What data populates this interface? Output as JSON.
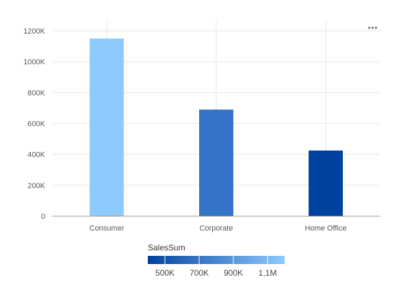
{
  "chart_data": {
    "type": "bar",
    "categories": [
      "Consumer",
      "Corporate",
      "Home Office"
    ],
    "series": [
      {
        "values": [
          1150000,
          690000,
          425000
        ]
      }
    ],
    "bar_colors": [
      "#8dcbff",
      "#3374c8",
      "#0042a0"
    ],
    "y_ticks": [
      {
        "value": 0,
        "label": "0"
      },
      {
        "value": 200000,
        "label": "200K"
      },
      {
        "value": 400000,
        "label": "400K"
      },
      {
        "value": 600000,
        "label": "600K"
      },
      {
        "value": 800000,
        "label": "800K"
      },
      {
        "value": 1000000,
        "label": "1000K"
      },
      {
        "value": 1200000,
        "label": "1200K"
      }
    ],
    "ylim": [
      0,
      1200000
    ],
    "grid": true,
    "legend": {
      "title": "SalesSum",
      "type": "color-scale",
      "placement": "bottom",
      "range": [
        400000,
        1200000
      ],
      "color_min": "#0042a0",
      "color_max": "#8dcbff",
      "ticks": [
        {
          "value": 500000,
          "label": "500K"
        },
        {
          "value": 700000,
          "label": "700K"
        },
        {
          "value": 900000,
          "label": "900K"
        },
        {
          "value": 1100000,
          "label": "1,1M"
        }
      ]
    }
  },
  "toolbar": {
    "menu_icon": "more-horizontal-icon"
  }
}
